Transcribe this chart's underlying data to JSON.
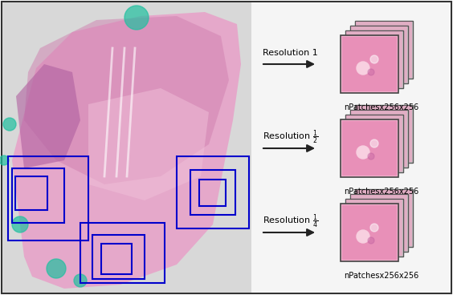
{
  "fig_width": 5.64,
  "fig_height": 3.68,
  "dpi": 100,
  "bg_color": "#e8e8e8",
  "left_panel_bg": "#d8d8d8",
  "right_panel_bg": "#f0f0f0",
  "border_color": "#333333",
  "box_color_blue": "#0000cc",
  "resolutions": [
    "Resolution 1",
    "Resolution $\\frac{1}{2}$",
    "Resolution $\\frac{1}{4}$"
  ],
  "labels": [
    "nPatchesx256x256",
    "nPatchesx256x256",
    "nPatchesx256x256"
  ],
  "arrow_color": "#222222",
  "patch_stack_colors": [
    "#e8a0c0",
    "#d070a0",
    "#c050a0"
  ],
  "patch_border": "#555555"
}
